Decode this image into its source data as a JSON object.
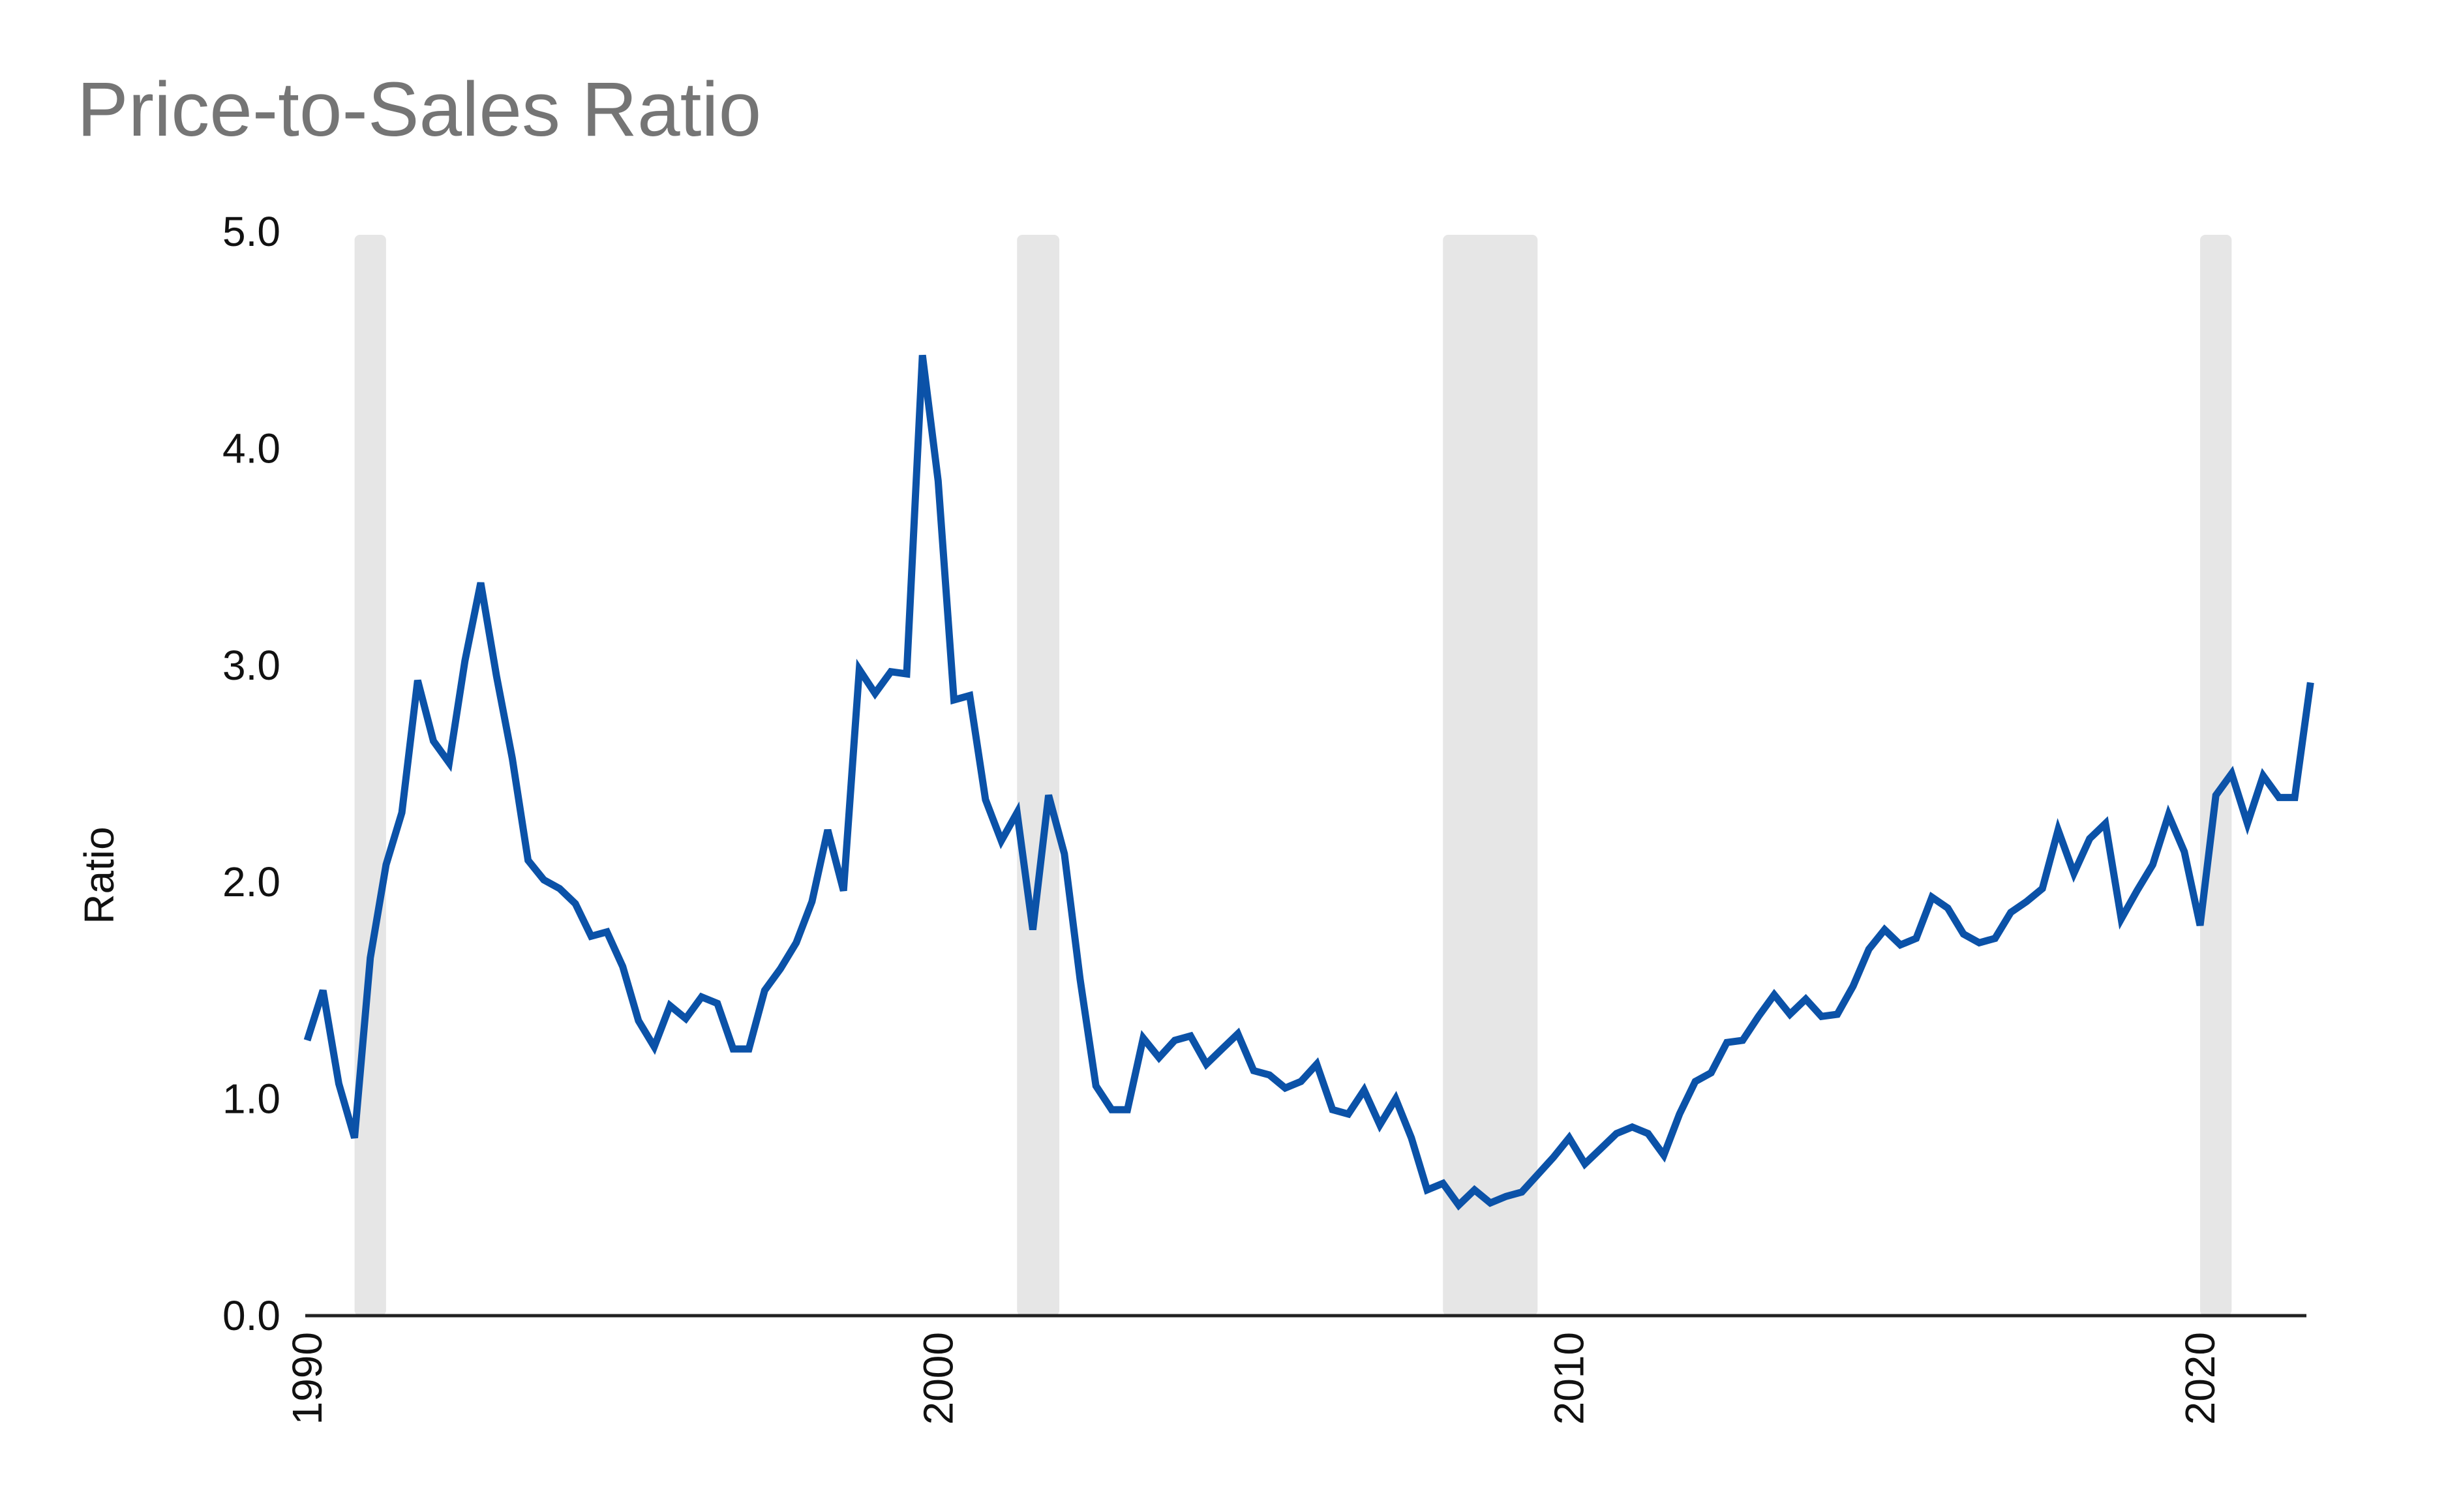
{
  "chart_data": {
    "type": "line",
    "title": "Price-to-Sales Ratio",
    "xlabel": "",
    "ylabel": "Ratio",
    "ylim": [
      0,
      5
    ],
    "xlim": [
      1990,
      2022
    ],
    "y_ticks": [
      "0.0",
      "1.0",
      "2.0",
      "3.0",
      "4.0",
      "5.0"
    ],
    "x_ticks": [
      "1990",
      "2000",
      "2010",
      "2020"
    ],
    "grid": false,
    "legend": "none",
    "colors": {
      "line": "#0b52a8",
      "recession": "#e6e6e6",
      "axis": "#222222",
      "title": "#757575"
    },
    "recessions": [
      {
        "start": 1990.75,
        "end": 1991.25
      },
      {
        "start": 2001.25,
        "end": 2001.92
      },
      {
        "start": 2008.0,
        "end": 2009.5
      },
      {
        "start": 2020.0,
        "end": 2020.5
      }
    ],
    "series": [
      {
        "x": [
          1990.0,
          1990.25,
          1990.5,
          1990.75,
          1991.0,
          1991.25,
          1991.5,
          1991.75,
          1992.0,
          1992.25,
          1992.5,
          1992.75,
          1993.0,
          1993.25,
          1993.5,
          1993.75,
          1994.0,
          1994.25,
          1994.5,
          1994.75,
          1995.0,
          1995.25,
          1995.5,
          1995.75,
          1996.0,
          1996.25,
          1996.5,
          1996.75,
          1997.0,
          1997.25,
          1997.5,
          1997.75,
          1998.0,
          1998.25,
          1998.5,
          1998.75,
          1999.0,
          1999.25,
          1999.5,
          1999.75,
          2000.0,
          2000.25,
          2000.5,
          2000.75,
          2001.0,
          2001.25,
          2001.5,
          2001.75,
          2002.0,
          2002.25,
          2002.5,
          2002.75,
          2003.0,
          2003.25,
          2003.5,
          2003.75,
          2004.0,
          2004.25,
          2004.5,
          2004.75,
          2005.0,
          2005.25,
          2005.5,
          2005.75,
          2006.0,
          2006.25,
          2006.5,
          2006.75,
          2007.0,
          2007.25,
          2007.5,
          2007.75,
          2008.0,
          2008.25,
          2008.5,
          2008.75,
          2009.0,
          2009.25,
          2009.5,
          2009.75,
          2010.0,
          2010.25,
          2010.5,
          2010.75,
          2011.0,
          2011.25,
          2011.5,
          2011.75,
          2012.0,
          2012.25,
          2012.5,
          2012.75,
          2013.0,
          2013.25,
          2013.5,
          2013.75,
          2014.0,
          2014.25,
          2014.5,
          2014.75,
          2015.0,
          2015.25,
          2015.5,
          2015.75,
          2016.0,
          2016.25,
          2016.5,
          2016.75,
          2017.0,
          2017.25,
          2017.5,
          2017.75,
          2018.0,
          2018.25,
          2018.5,
          2018.75,
          2019.0,
          2019.25,
          2019.5,
          2019.75,
          2020.0,
          2020.25,
          2020.5,
          2020.75,
          2021.0,
          2021.25,
          2021.5,
          2021.75
        ],
        "values": [
          1.27,
          1.5,
          1.07,
          0.82,
          1.65,
          2.08,
          2.32,
          2.93,
          2.65,
          2.55,
          3.02,
          3.38,
          2.95,
          2.57,
          2.1,
          2.01,
          1.97,
          1.9,
          1.75,
          1.77,
          1.61,
          1.36,
          1.24,
          1.43,
          1.37,
          1.47,
          1.44,
          1.23,
          1.23,
          1.5,
          1.6,
          1.72,
          1.91,
          2.24,
          1.96,
          2.98,
          2.87,
          2.97,
          2.96,
          4.43,
          3.85,
          2.84,
          2.86,
          2.38,
          2.19,
          2.32,
          1.78,
          2.4,
          2.13,
          1.55,
          1.06,
          0.95,
          0.95,
          1.28,
          1.19,
          1.27,
          1.29,
          1.16,
          1.23,
          1.3,
          1.13,
          1.11,
          1.05,
          1.08,
          1.16,
          0.95,
          0.93,
          1.04,
          0.88,
          1.0,
          0.82,
          0.58,
          0.61,
          0.51,
          0.58,
          0.52,
          0.55,
          0.57,
          0.65,
          0.73,
          0.82,
          0.7,
          0.77,
          0.84,
          0.87,
          0.84,
          0.74,
          0.93,
          1.08,
          1.12,
          1.26,
          1.27,
          1.38,
          1.48,
          1.39,
          1.46,
          1.38,
          1.39,
          1.52,
          1.69,
          1.78,
          1.71,
          1.74,
          1.93,
          1.88,
          1.76,
          1.72,
          1.74,
          1.86,
          1.91,
          1.97,
          2.24,
          2.04,
          2.2,
          2.27,
          1.83,
          1.96,
          2.08,
          2.31,
          2.14,
          1.8,
          2.4,
          2.5,
          2.27,
          2.49,
          2.39,
          2.39,
          2.92
        ]
      }
    ]
  }
}
